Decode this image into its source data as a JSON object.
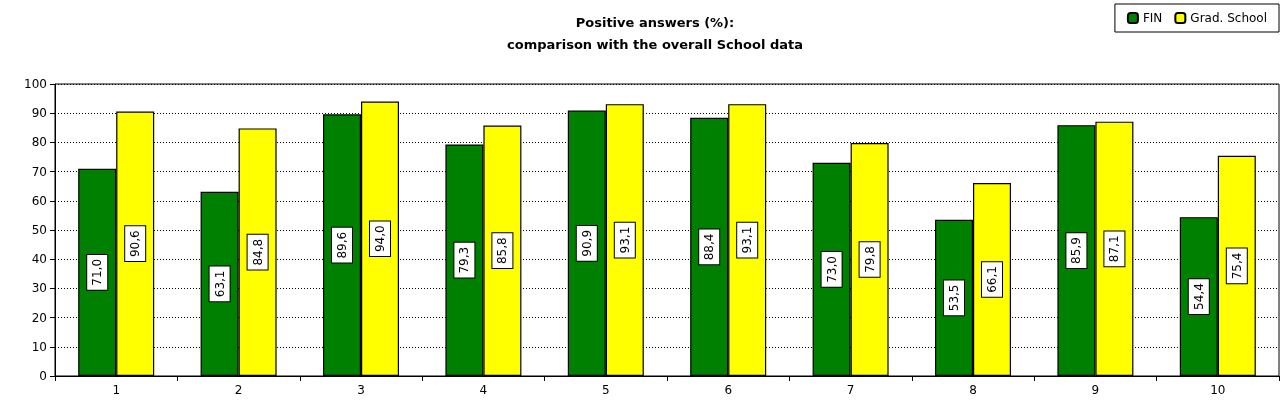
{
  "chart_data": {
    "type": "bar",
    "title": "Positive answers (%):\ncomparison with the overall School data",
    "categories": [
      "1",
      "2",
      "3",
      "4",
      "5",
      "6",
      "7",
      "8",
      "9",
      "10"
    ],
    "series": [
      {
        "name": "FIN",
        "color": "#008000",
        "values": [
          71.0,
          63.1,
          89.6,
          79.3,
          90.9,
          88.4,
          73.0,
          53.5,
          85.9,
          54.4
        ],
        "value_labels": [
          "71,0",
          "63,1",
          "89,6",
          "79,3",
          "90,9",
          "88,4",
          "73,0",
          "53,5",
          "85,9",
          "54,4"
        ]
      },
      {
        "name": "Grad. School",
        "color": "#ffff00",
        "values": [
          90.6,
          84.8,
          94.0,
          85.8,
          93.1,
          93.1,
          79.8,
          66.1,
          87.1,
          75.4
        ],
        "value_labels": [
          "90,6",
          "84,8",
          "94,0",
          "85,8",
          "93,1",
          "93,1",
          "79,8",
          "66,1",
          "87,1",
          "75,4"
        ]
      }
    ],
    "ylim": [
      0,
      100
    ],
    "yticks": [
      0,
      10,
      20,
      30,
      40,
      50,
      60,
      70,
      80,
      90,
      100
    ],
    "grid": "y",
    "legend": "top right"
  }
}
